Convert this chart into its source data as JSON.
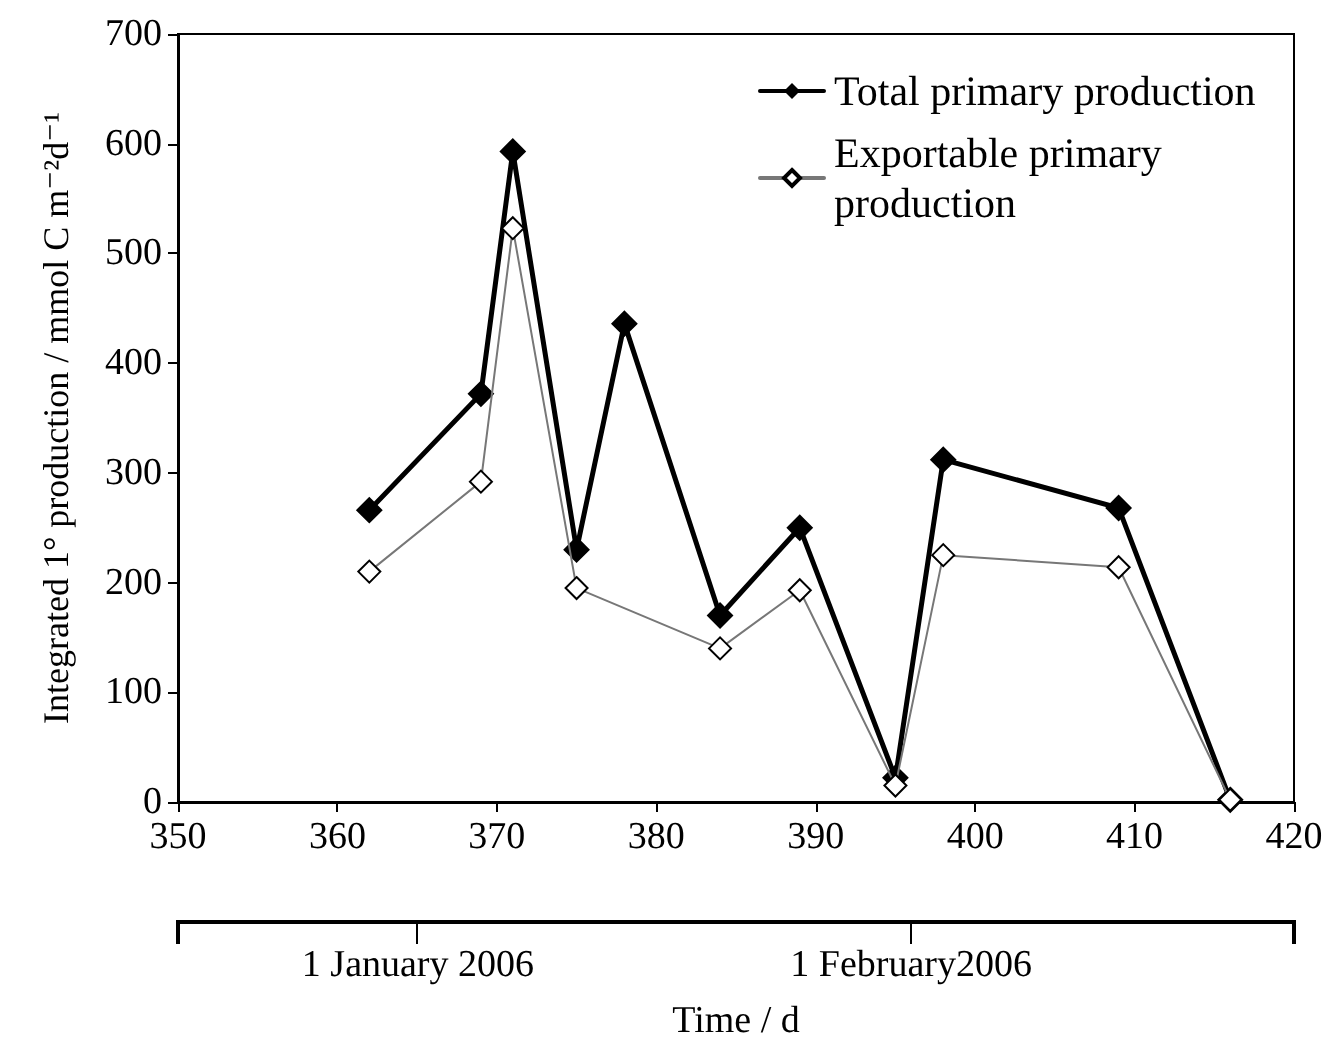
{
  "chart_data": {
    "type": "line",
    "xlabel": "Time / d",
    "ylabel": "Integrated 1° production / mmol C m⁻²d⁻¹",
    "series": [
      {
        "name": "Total primary production",
        "color": "#000000",
        "x": [
          362,
          369,
          371,
          375,
          378,
          384,
          389,
          395,
          398,
          409,
          416
        ],
        "values": [
          266,
          372,
          593,
          230,
          436,
          170,
          250,
          22,
          312,
          268,
          2
        ]
      },
      {
        "name": "Exportable primary production",
        "color": "#777777",
        "x": [
          362,
          369,
          371,
          375,
          384,
          389,
          395,
          398,
          409,
          416
        ],
        "values": [
          210,
          292,
          523,
          195,
          140,
          193,
          15,
          225,
          214,
          2
        ]
      }
    ],
    "xlim": [
      350,
      420
    ],
    "xticks": [
      350,
      360,
      370,
      380,
      390,
      400,
      410,
      420
    ],
    "ylim": [
      0,
      700
    ],
    "yticks": [
      0,
      100,
      200,
      300,
      400,
      500,
      600,
      700
    ],
    "annotations": [
      "1 January 2006",
      "1 February2006"
    ],
    "marker": "diamond",
    "grid": false,
    "legend": "top right"
  }
}
